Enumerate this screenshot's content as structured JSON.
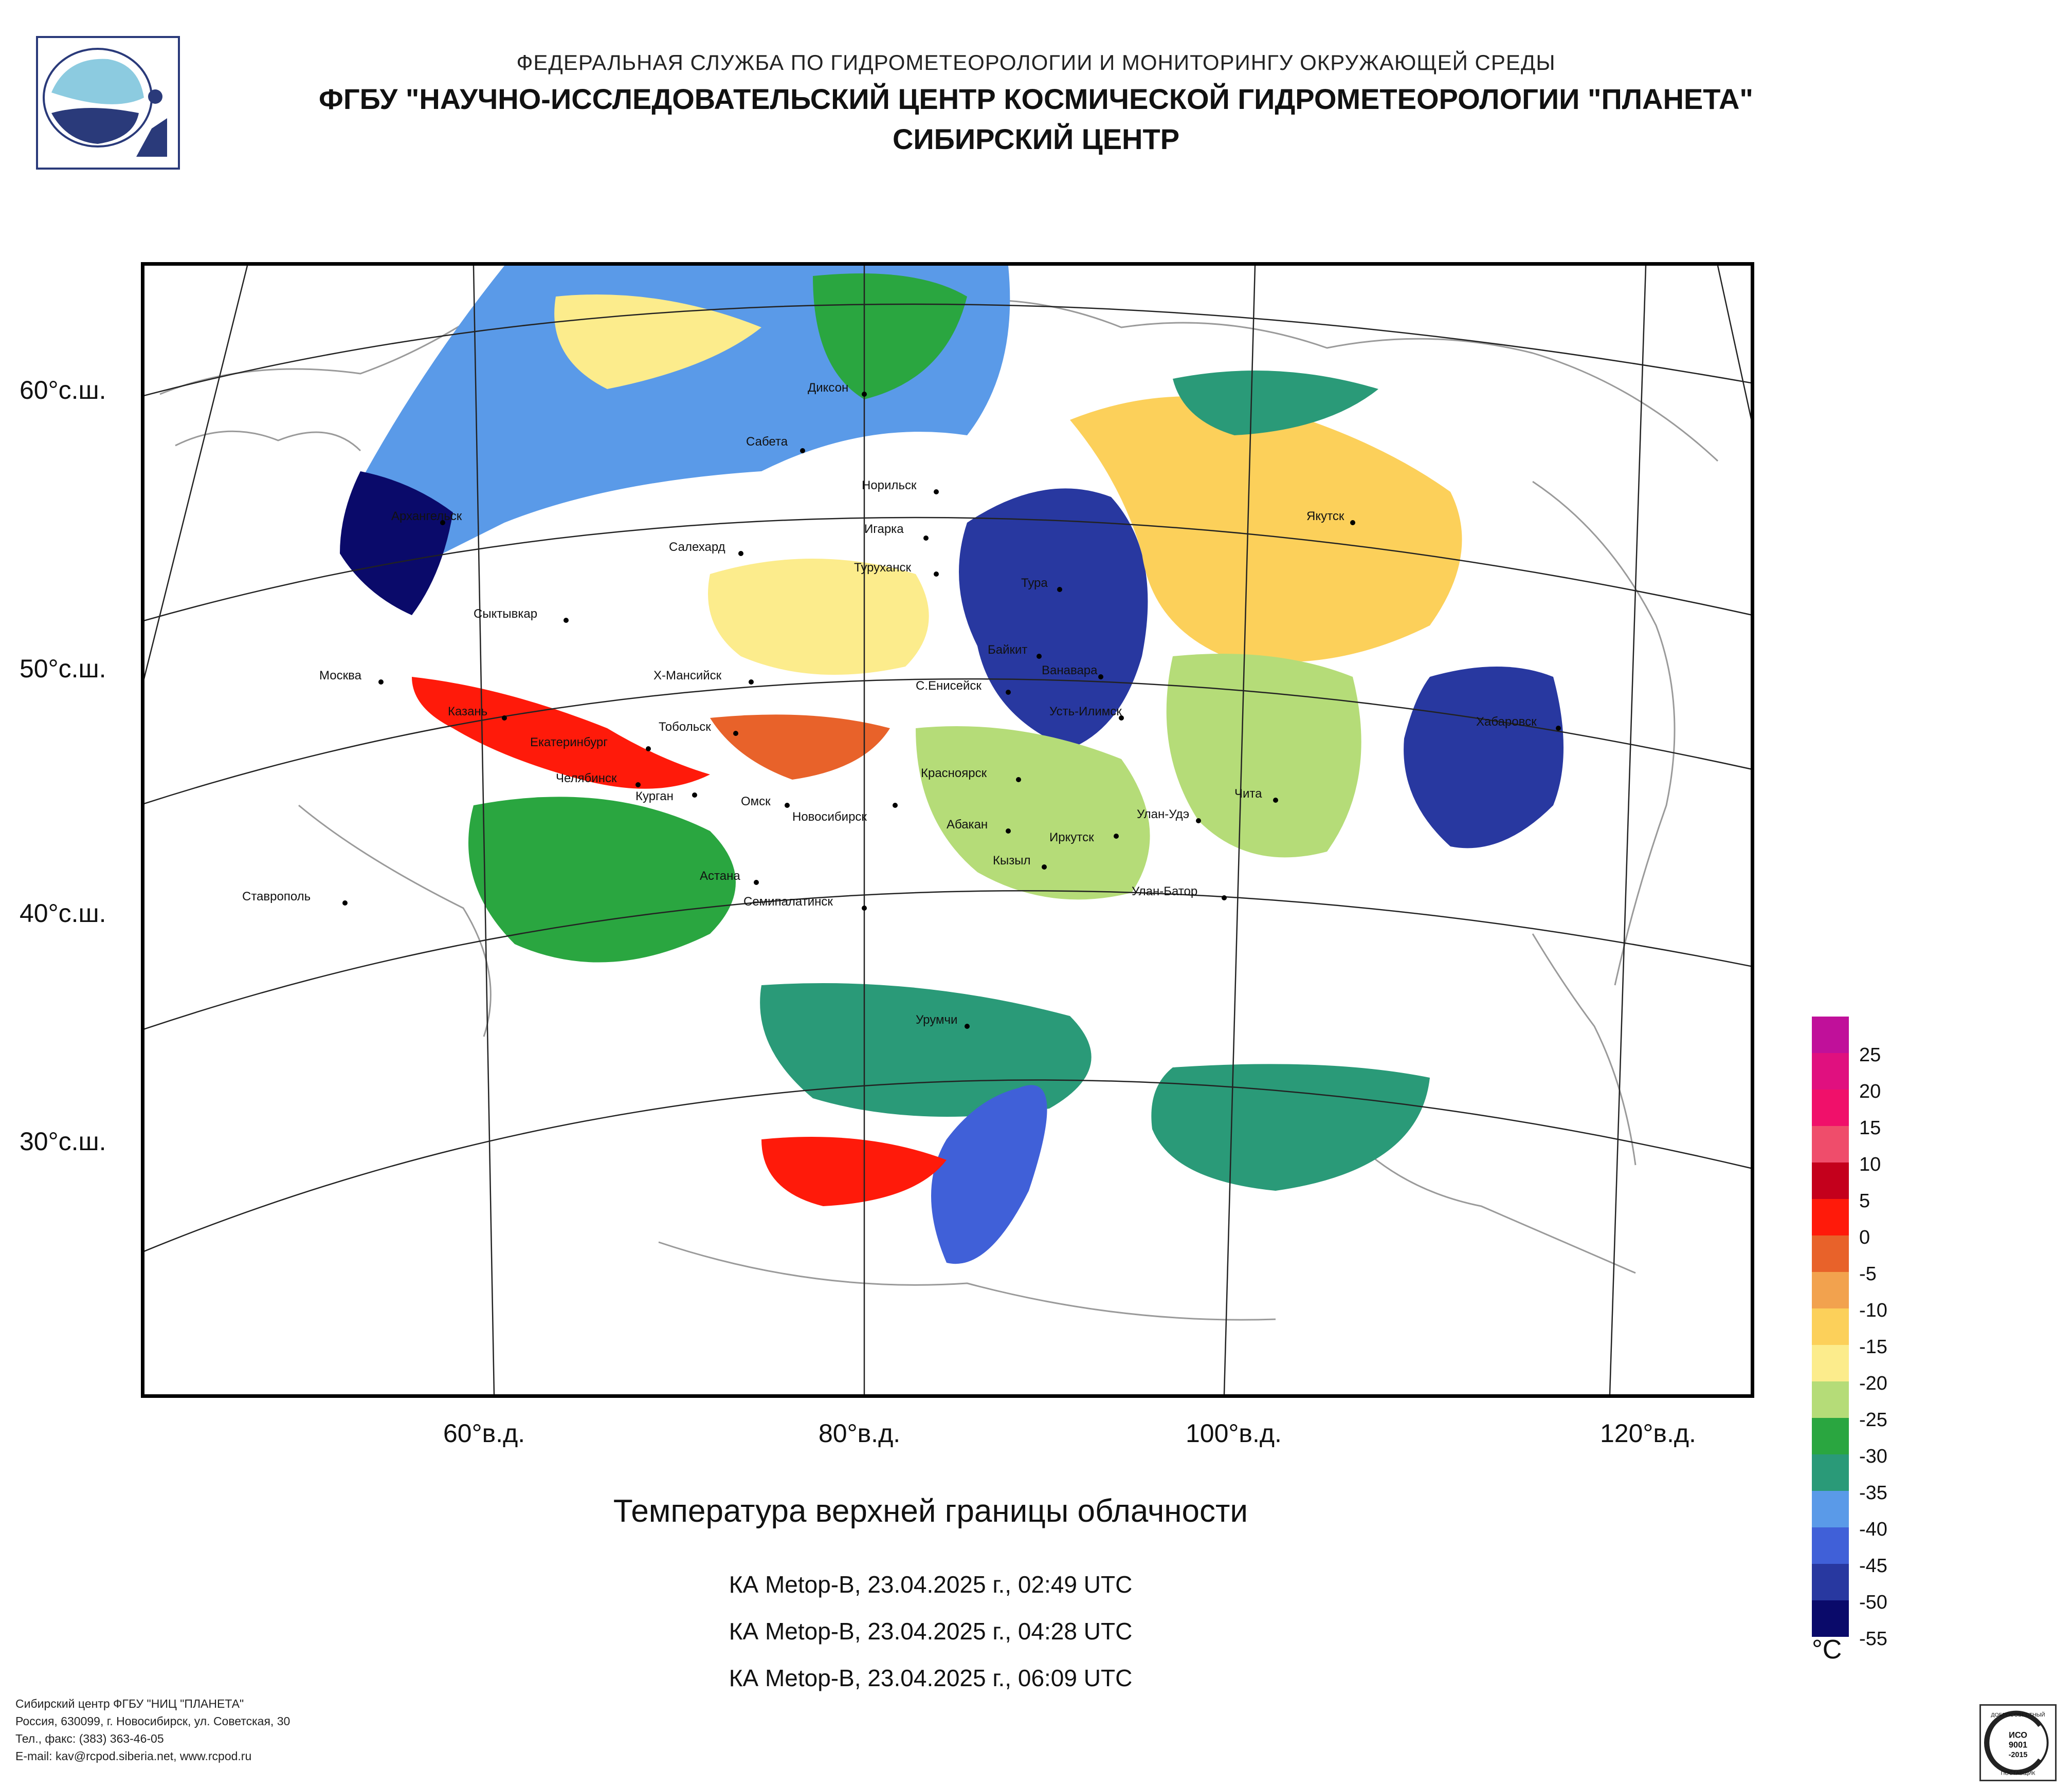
{
  "header": {
    "line1": "ФЕДЕРАЛЬНАЯ СЛУЖБА ПО ГИДРОМЕТЕОРОЛОГИИ И МОНИТОРИНГУ ОКРУЖАЮЩЕЙ СРЕДЫ",
    "line2": "ФГБУ \"НАУЧНО-ИССЛЕДОВАТЕЛЬСКИЙ ЦЕНТР КОСМИЧЕСКОЙ ГИДРОМЕТЕОРОЛОГИИ \"ПЛАНЕТА\"",
    "line3": "СИБИРСКИЙ ЦЕНТР",
    "logo_icon": "planeta-logo-icon"
  },
  "map": {
    "latitude_labels": [
      "60°с.ш.",
      "50°с.ш.",
      "40°с.ш.",
      "30°с.ш."
    ],
    "longitude_labels": [
      "60°в.д.",
      "80°в.д.",
      "100°в.д.",
      "120°в.д."
    ],
    "cities": [
      "Диксон",
      "Сабета",
      "Норильск",
      "Игарка",
      "Туруханск",
      "Тура",
      "Якутск",
      "Архангельск",
      "Салехард",
      "Сыктывкар",
      "Москва",
      "Х-Мансийск",
      "Байкит",
      "Ванавара",
      "С.Енисейск",
      "Усть-Илимск",
      "Хабаровск",
      "Казань",
      "Екатеринбург",
      "Тобольск",
      "Челябинск",
      "Курган",
      "Омск",
      "Новосибирск",
      "Красноярск",
      "Абакан",
      "Улан-Удэ",
      "Иркутск",
      "Чита",
      "Кызыл",
      "Астана",
      "Семипалатинск",
      "Улан-Батор",
      "Ставрополь",
      "Урумчи"
    ]
  },
  "title": "Температура верхней границы облачности",
  "passes": [
    "КА Metop-B, 23.04.2025 г., 02:49 UTC",
    "КА Metop-B, 23.04.2025 г., 04:28 UTC",
    "КА Metop-B, 23.04.2025 г., 06:09 UTC"
  ],
  "legend": {
    "unit": "°C",
    "ticks": [
      "25",
      "20",
      "15",
      "10",
      "5",
      "0",
      "-5",
      "-10",
      "-15",
      "-20",
      "-25",
      "-30",
      "-35",
      "-40",
      "-45",
      "-50",
      "-55"
    ],
    "colors": [
      "#c0109a",
      "#e0107f",
      "#f0106a",
      "#ef4d6b",
      "#c4001c",
      "#ff1a0a",
      "#e8622a",
      "#f2a24e",
      "#fcd05a",
      "#fcec8c",
      "#b5dc78",
      "#2aa640",
      "#2a9a78",
      "#5a9ae8",
      "#4060d8",
      "#2838a0",
      "#0a0a6a"
    ]
  },
  "footer": {
    "line1": "Сибирский центр ФГБУ \"НИЦ \"ПЛАНЕТА\"",
    "line2": "Россия, 630099, г. Новосибирск, ул. Советская, 30",
    "line3": "Тел., факс: (383) 363-46-05",
    "line4": "E-mail: kav@rcpod.siberia.net, www.rcpod.ru"
  },
  "iso_badge": {
    "top_text": "ДОБРОСОВЕСТНЫЙ",
    "line1": "ИСО",
    "line2": "9001",
    "line3": "-2015",
    "bottom_text": "ПОСТАВЩИК"
  }
}
